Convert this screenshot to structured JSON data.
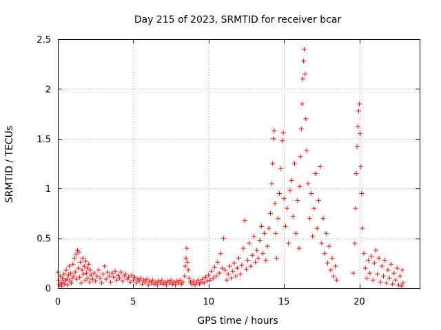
{
  "chart_data": {
    "type": "scatter",
    "title": "Day 215 of 2023, SRMTID for receiver bcar",
    "xlabel": "GPS time / hours",
    "ylabel": "SRMTID / TECUs",
    "xlim": [
      0,
      24
    ],
    "ylim": [
      0,
      2.5
    ],
    "xticks": [
      0,
      5,
      10,
      15,
      20
    ],
    "yticks": [
      0,
      0.5,
      1,
      1.5,
      2,
      2.5
    ],
    "xtick_labels": [
      "0",
      "5",
      "10",
      "15",
      "20"
    ],
    "ytick_labels": [
      "0",
      "0.5",
      "1",
      "1.5",
      "2",
      "2.5"
    ],
    "grid": true,
    "marker": "+",
    "series": [
      {
        "name": "SRMTID",
        "color": "#ff0000",
        "points": [
          [
            0.0,
            0.16
          ],
          [
            0.05,
            0.08
          ],
          [
            0.1,
            0.03
          ],
          [
            0.15,
            0.12
          ],
          [
            0.2,
            0.05
          ],
          [
            0.25,
            0.02
          ],
          [
            0.3,
            0.1
          ],
          [
            0.35,
            0.06
          ],
          [
            0.4,
            0.14
          ],
          [
            0.45,
            0.04
          ],
          [
            0.5,
            0.08
          ],
          [
            0.55,
            0.18
          ],
          [
            0.6,
            0.09
          ],
          [
            0.65,
            0.03
          ],
          [
            0.7,
            0.13
          ],
          [
            0.75,
            0.22
          ],
          [
            0.8,
            0.07
          ],
          [
            0.85,
            0.15
          ],
          [
            0.9,
            0.05
          ],
          [
            0.95,
            0.1
          ],
          [
            1.0,
            0.24
          ],
          [
            1.05,
            0.12
          ],
          [
            1.1,
            0.3
          ],
          [
            1.15,
            0.16
          ],
          [
            1.2,
            0.34
          ],
          [
            1.25,
            0.09
          ],
          [
            1.3,
            0.38
          ],
          [
            1.35,
            0.2
          ],
          [
            1.4,
            0.36
          ],
          [
            1.45,
            0.11
          ],
          [
            1.5,
            0.26
          ],
          [
            1.55,
            0.05
          ],
          [
            1.6,
            0.18
          ],
          [
            1.65,
            0.3
          ],
          [
            1.7,
            0.14
          ],
          [
            1.75,
            0.22
          ],
          [
            1.8,
            0.08
          ],
          [
            1.85,
            0.27
          ],
          [
            1.9,
            0.15
          ],
          [
            1.95,
            0.2
          ],
          [
            2.0,
            0.1
          ],
          [
            2.05,
            0.24
          ],
          [
            2.1,
            0.06
          ],
          [
            2.15,
            0.18
          ],
          [
            2.2,
            0.13
          ],
          [
            2.3,
            0.09
          ],
          [
            2.4,
            0.15
          ],
          [
            2.5,
            0.07
          ],
          [
            2.6,
            0.12
          ],
          [
            2.7,
            0.18
          ],
          [
            2.8,
            0.1
          ],
          [
            2.9,
            0.05
          ],
          [
            3.0,
            0.14
          ],
          [
            3.1,
            0.22
          ],
          [
            3.2,
            0.09
          ],
          [
            3.3,
            0.16
          ],
          [
            3.4,
            0.12
          ],
          [
            3.5,
            0.06
          ],
          [
            3.6,
            0.15
          ],
          [
            3.7,
            0.11
          ],
          [
            3.8,
            0.17
          ],
          [
            3.9,
            0.08
          ],
          [
            4.0,
            0.13
          ],
          [
            4.1,
            0.1
          ],
          [
            4.2,
            0.16
          ],
          [
            4.3,
            0.07
          ],
          [
            4.4,
            0.12
          ],
          [
            4.5,
            0.14
          ],
          [
            4.6,
            0.09
          ],
          [
            4.7,
            0.11
          ],
          [
            4.8,
            0.06
          ],
          [
            4.9,
            0.13
          ],
          [
            5.0,
            0.08
          ],
          [
            5.1,
            0.11
          ],
          [
            5.2,
            0.05
          ],
          [
            5.3,
            0.09
          ],
          [
            5.4,
            0.07
          ],
          [
            5.5,
            0.1
          ],
          [
            5.6,
            0.04
          ],
          [
            5.7,
            0.08
          ],
          [
            5.8,
            0.06
          ],
          [
            5.9,
            0.09
          ],
          [
            6.0,
            0.03
          ],
          [
            6.1,
            0.07
          ],
          [
            6.2,
            0.05
          ],
          [
            6.3,
            0.08
          ],
          [
            6.4,
            0.04
          ],
          [
            6.5,
            0.06
          ],
          [
            6.6,
            0.03
          ],
          [
            6.7,
            0.07
          ],
          [
            6.8,
            0.05
          ],
          [
            6.9,
            0.08
          ],
          [
            7.0,
            0.04
          ],
          [
            7.1,
            0.06
          ],
          [
            7.2,
            0.03
          ],
          [
            7.3,
            0.07
          ],
          [
            7.4,
            0.05
          ],
          [
            7.5,
            0.08
          ],
          [
            7.6,
            0.04
          ],
          [
            7.7,
            0.06
          ],
          [
            7.8,
            0.03
          ],
          [
            7.9,
            0.07
          ],
          [
            8.0,
            0.05
          ],
          [
            8.1,
            0.08
          ],
          [
            8.2,
            0.04
          ],
          [
            8.3,
            0.06
          ],
          [
            8.4,
            0.12
          ],
          [
            8.45,
            0.22
          ],
          [
            8.5,
            0.3
          ],
          [
            8.55,
            0.4
          ],
          [
            8.6,
            0.26
          ],
          [
            8.65,
            0.18
          ],
          [
            8.7,
            0.1
          ],
          [
            8.8,
            0.06
          ],
          [
            8.9,
            0.04
          ],
          [
            9.0,
            0.07
          ],
          [
            9.1,
            0.03
          ],
          [
            9.2,
            0.05
          ],
          [
            9.3,
            0.08
          ],
          [
            9.4,
            0.04
          ],
          [
            9.5,
            0.06
          ],
          [
            9.6,
            0.09
          ],
          [
            9.7,
            0.05
          ],
          [
            9.8,
            0.11
          ],
          [
            9.9,
            0.07
          ],
          [
            10.0,
            0.13
          ],
          [
            10.1,
            0.08
          ],
          [
            10.2,
            0.17
          ],
          [
            10.3,
            0.1
          ],
          [
            10.4,
            0.21
          ],
          [
            10.5,
            0.12
          ],
          [
            10.6,
            0.26
          ],
          [
            10.7,
            0.15
          ],
          [
            10.8,
            0.35
          ],
          [
            10.9,
            0.2
          ],
          [
            11.0,
            0.5
          ],
          [
            11.1,
            0.18
          ],
          [
            11.2,
            0.08
          ],
          [
            11.3,
            0.14
          ],
          [
            11.4,
            0.22
          ],
          [
            11.5,
            0.1
          ],
          [
            11.6,
            0.17
          ],
          [
            11.7,
            0.25
          ],
          [
            11.8,
            0.12
          ],
          [
            11.9,
            0.2
          ],
          [
            12.0,
            0.3
          ],
          [
            12.1,
            0.14
          ],
          [
            12.2,
            0.23
          ],
          [
            12.3,
            0.4
          ],
          [
            12.4,
            0.68
          ],
          [
            12.5,
            0.19
          ],
          [
            12.6,
            0.28
          ],
          [
            12.7,
            0.45
          ],
          [
            12.8,
            0.22
          ],
          [
            12.9,
            0.33
          ],
          [
            13.0,
            0.52
          ],
          [
            13.1,
            0.26
          ],
          [
            13.2,
            0.38
          ],
          [
            13.3,
            0.3
          ],
          [
            13.4,
            0.48
          ],
          [
            13.5,
            0.62
          ],
          [
            13.6,
            0.35
          ],
          [
            13.7,
            0.55
          ],
          [
            13.8,
            0.28
          ],
          [
            13.9,
            0.42
          ],
          [
            14.0,
            0.6
          ],
          [
            14.1,
            0.75
          ],
          [
            14.2,
            1.05
          ],
          [
            14.25,
            1.25
          ],
          [
            14.3,
            1.5
          ],
          [
            14.35,
            1.58
          ],
          [
            14.4,
            0.85
          ],
          [
            14.45,
            0.55
          ],
          [
            14.5,
            0.3
          ],
          [
            14.6,
            0.7
          ],
          [
            14.7,
            0.95
          ],
          [
            14.8,
            1.2
          ],
          [
            14.9,
            1.48
          ],
          [
            14.95,
            1.56
          ],
          [
            15.0,
            0.9
          ],
          [
            15.1,
            0.62
          ],
          [
            15.2,
            0.8
          ],
          [
            15.3,
            0.45
          ],
          [
            15.4,
            0.98
          ],
          [
            15.5,
            1.08
          ],
          [
            15.6,
            0.72
          ],
          [
            15.7,
            1.25
          ],
          [
            15.8,
            0.55
          ],
          [
            15.9,
            0.88
          ],
          [
            16.0,
            0.4
          ],
          [
            16.05,
            1.02
          ],
          [
            16.1,
            1.32
          ],
          [
            16.15,
            1.6
          ],
          [
            16.2,
            1.85
          ],
          [
            16.25,
            2.1
          ],
          [
            16.3,
            2.28
          ],
          [
            16.35,
            2.4
          ],
          [
            16.4,
            2.15
          ],
          [
            16.45,
            1.7
          ],
          [
            16.5,
            1.38
          ],
          [
            16.6,
            1.05
          ],
          [
            16.7,
            0.7
          ],
          [
            16.8,
            0.95
          ],
          [
            16.9,
            0.52
          ],
          [
            17.0,
            0.8
          ],
          [
            17.1,
            1.15
          ],
          [
            17.2,
            0.6
          ],
          [
            17.3,
            0.88
          ],
          [
            17.4,
            1.22
          ],
          [
            17.5,
            0.45
          ],
          [
            17.6,
            0.7
          ],
          [
            17.7,
            0.35
          ],
          [
            17.8,
            0.55
          ],
          [
            17.9,
            0.25
          ],
          [
            18.0,
            0.42
          ],
          [
            18.1,
            0.18
          ],
          [
            18.2,
            0.3
          ],
          [
            18.3,
            0.12
          ],
          [
            18.4,
            0.22
          ],
          [
            18.5,
            0.08
          ],
          [
            19.6,
            0.15
          ],
          [
            19.7,
            0.45
          ],
          [
            19.75,
            0.8
          ],
          [
            19.8,
            1.15
          ],
          [
            19.85,
            1.42
          ],
          [
            19.9,
            1.62
          ],
          [
            19.95,
            1.78
          ],
          [
            20.0,
            1.85
          ],
          [
            20.05,
            1.55
          ],
          [
            20.1,
            1.22
          ],
          [
            20.15,
            0.95
          ],
          [
            20.2,
            0.6
          ],
          [
            20.3,
            0.35
          ],
          [
            20.4,
            0.2
          ],
          [
            20.5,
            0.1
          ],
          [
            20.6,
            0.28
          ],
          [
            20.7,
            0.15
          ],
          [
            20.8,
            0.32
          ],
          [
            20.9,
            0.08
          ],
          [
            21.0,
            0.25
          ],
          [
            21.1,
            0.38
          ],
          [
            21.2,
            0.14
          ],
          [
            21.3,
            0.3
          ],
          [
            21.4,
            0.06
          ],
          [
            21.5,
            0.22
          ],
          [
            21.6,
            0.12
          ],
          [
            21.7,
            0.28
          ],
          [
            21.8,
            0.05
          ],
          [
            21.9,
            0.18
          ],
          [
            22.0,
            0.1
          ],
          [
            22.1,
            0.24
          ],
          [
            22.2,
            0.04
          ],
          [
            22.3,
            0.15
          ],
          [
            22.4,
            0.08
          ],
          [
            22.5,
            0.2
          ],
          [
            22.6,
            0.03
          ],
          [
            22.7,
            0.12
          ],
          [
            22.8,
            0.02
          ],
          [
            22.85,
            0.18
          ],
          [
            22.9,
            0.05
          ]
        ]
      }
    ]
  }
}
